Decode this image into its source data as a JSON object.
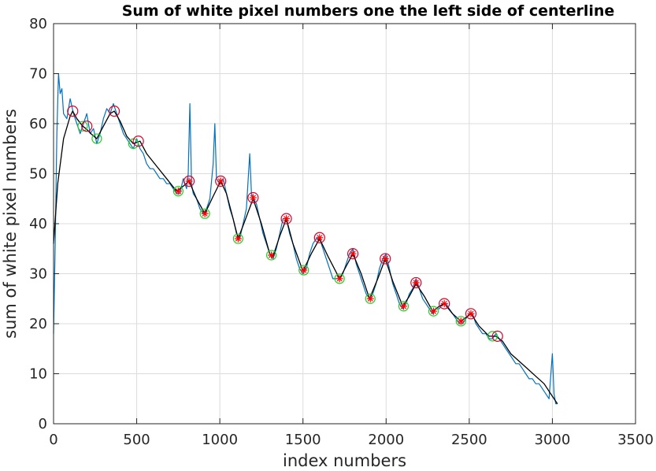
{
  "chart_data": {
    "type": "line",
    "title": "Sum of white pixel numbers one the left side of centerline",
    "xlabel": "index numbers",
    "ylabel": "sum of white pixel numbers",
    "xlim": [
      0,
      3500
    ],
    "ylim": [
      0,
      80
    ],
    "xticks": [
      0,
      500,
      1000,
      1500,
      2000,
      2500,
      3000,
      3500
    ],
    "yticks": [
      0,
      10,
      20,
      30,
      40,
      50,
      60,
      70,
      80
    ],
    "grid": true,
    "legend": "none",
    "colors": {
      "raw": "#0072bd",
      "smooth": "#000000",
      "peaks": "#d9002c",
      "valleys": "#22cc22",
      "stars": "#ff0000",
      "axes": "#262626",
      "grid": "#dcdcdc"
    },
    "series": [
      {
        "role": "smoothed",
        "points": [
          [
            0,
            36
          ],
          [
            25,
            48
          ],
          [
            60,
            57
          ],
          [
            100,
            61.5
          ],
          [
            115,
            62.5
          ],
          [
            140,
            61
          ],
          [
            175,
            59.5
          ],
          [
            195,
            59
          ],
          [
            225,
            58
          ],
          [
            260,
            57
          ],
          [
            300,
            59.5
          ],
          [
            340,
            62
          ],
          [
            365,
            62.5
          ],
          [
            400,
            60.5
          ],
          [
            440,
            57.5
          ],
          [
            480,
            56
          ],
          [
            520,
            56.5
          ],
          [
            560,
            54
          ],
          [
            620,
            51.5
          ],
          [
            680,
            49
          ],
          [
            740,
            46.5
          ],
          [
            780,
            47.5
          ],
          [
            815,
            48.5
          ],
          [
            860,
            45
          ],
          [
            910,
            42
          ],
          [
            960,
            45.5
          ],
          [
            1005,
            48.5
          ],
          [
            1040,
            46
          ],
          [
            1080,
            41
          ],
          [
            1110,
            37
          ],
          [
            1150,
            40.5
          ],
          [
            1200,
            45
          ],
          [
            1250,
            40
          ],
          [
            1300,
            34
          ],
          [
            1320,
            33.5
          ],
          [
            1360,
            37.5
          ],
          [
            1400,
            41
          ],
          [
            1440,
            36
          ],
          [
            1500,
            30.5
          ],
          [
            1550,
            34
          ],
          [
            1600,
            37
          ],
          [
            1650,
            33.5
          ],
          [
            1720,
            29
          ],
          [
            1760,
            31.5
          ],
          [
            1800,
            34
          ],
          [
            1850,
            30
          ],
          [
            1900,
            25
          ],
          [
            1950,
            29
          ],
          [
            1995,
            33
          ],
          [
            2040,
            28.5
          ],
          [
            2100,
            23.5
          ],
          [
            2140,
            25.5
          ],
          [
            2180,
            28
          ],
          [
            2230,
            25.5
          ],
          [
            2280,
            22.5
          ],
          [
            2320,
            23.5
          ],
          [
            2350,
            24
          ],
          [
            2400,
            22
          ],
          [
            2450,
            20.5
          ],
          [
            2510,
            22
          ],
          [
            2560,
            19.5
          ],
          [
            2620,
            17.5
          ],
          [
            2660,
            17.5
          ],
          [
            2700,
            16.5
          ],
          [
            2750,
            14
          ],
          [
            2800,
            12.5
          ],
          [
            2850,
            11
          ],
          [
            2900,
            9.5
          ],
          [
            2950,
            8
          ],
          [
            3000,
            5.5
          ],
          [
            3030,
            4
          ]
        ]
      },
      {
        "role": "raw-signal",
        "points": [
          [
            0,
            18
          ],
          [
            10,
            36
          ],
          [
            20,
            58
          ],
          [
            30,
            70
          ],
          [
            40,
            66
          ],
          [
            50,
            67
          ],
          [
            60,
            62
          ],
          [
            80,
            61
          ],
          [
            100,
            65
          ],
          [
            120,
            62
          ],
          [
            140,
            60
          ],
          [
            160,
            58
          ],
          [
            180,
            60
          ],
          [
            200,
            62
          ],
          [
            220,
            58
          ],
          [
            240,
            59
          ],
          [
            260,
            56
          ],
          [
            280,
            58
          ],
          [
            300,
            61
          ],
          [
            320,
            63
          ],
          [
            340,
            62
          ],
          [
            360,
            64
          ],
          [
            380,
            62
          ],
          [
            400,
            60
          ],
          [
            420,
            58
          ],
          [
            440,
            57
          ],
          [
            460,
            56
          ],
          [
            480,
            55
          ],
          [
            500,
            57
          ],
          [
            520,
            55
          ],
          [
            540,
            54
          ],
          [
            560,
            52
          ],
          [
            580,
            51
          ],
          [
            600,
            51
          ],
          [
            620,
            50
          ],
          [
            640,
            49
          ],
          [
            660,
            49
          ],
          [
            680,
            48
          ],
          [
            700,
            48
          ],
          [
            720,
            47
          ],
          [
            740,
            46
          ],
          [
            760,
            46
          ],
          [
            780,
            49
          ],
          [
            800,
            47
          ],
          [
            810,
            50
          ],
          [
            820,
            64
          ],
          [
            830,
            48
          ],
          [
            840,
            46
          ],
          [
            860,
            45
          ],
          [
            880,
            43
          ],
          [
            900,
            42
          ],
          [
            920,
            43
          ],
          [
            940,
            45
          ],
          [
            960,
            52
          ],
          [
            970,
            60
          ],
          [
            980,
            49
          ],
          [
            1000,
            48
          ],
          [
            1020,
            49
          ],
          [
            1040,
            46
          ],
          [
            1060,
            43
          ],
          [
            1080,
            41
          ],
          [
            1100,
            38
          ],
          [
            1120,
            37
          ],
          [
            1140,
            40
          ],
          [
            1160,
            43
          ],
          [
            1180,
            54
          ],
          [
            1190,
            46
          ],
          [
            1200,
            45
          ],
          [
            1220,
            44
          ],
          [
            1240,
            41
          ],
          [
            1260,
            38
          ],
          [
            1280,
            36
          ],
          [
            1300,
            34
          ],
          [
            1320,
            33
          ],
          [
            1340,
            35
          ],
          [
            1360,
            38
          ],
          [
            1380,
            41
          ],
          [
            1400,
            41
          ],
          [
            1420,
            38
          ],
          [
            1440,
            36
          ],
          [
            1460,
            33
          ],
          [
            1480,
            31
          ],
          [
            1500,
            30
          ],
          [
            1520,
            31
          ],
          [
            1540,
            34
          ],
          [
            1560,
            36
          ],
          [
            1580,
            37
          ],
          [
            1600,
            37
          ],
          [
            1620,
            35
          ],
          [
            1640,
            33
          ],
          [
            1660,
            31
          ],
          [
            1680,
            29
          ],
          [
            1700,
            29
          ],
          [
            1720,
            29
          ],
          [
            1740,
            30
          ],
          [
            1760,
            32
          ],
          [
            1780,
            34
          ],
          [
            1800,
            35
          ],
          [
            1820,
            32
          ],
          [
            1840,
            30
          ],
          [
            1860,
            28
          ],
          [
            1880,
            26
          ],
          [
            1900,
            25
          ],
          [
            1920,
            26
          ],
          [
            1940,
            28
          ],
          [
            1960,
            31
          ],
          [
            1980,
            33
          ],
          [
            2000,
            34
          ],
          [
            2020,
            31
          ],
          [
            2040,
            28
          ],
          [
            2060,
            26
          ],
          [
            2080,
            24
          ],
          [
            2100,
            23
          ],
          [
            2120,
            24
          ],
          [
            2140,
            26
          ],
          [
            2160,
            27
          ],
          [
            2180,
            29
          ],
          [
            2200,
            27
          ],
          [
            2220,
            25
          ],
          [
            2240,
            24
          ],
          [
            2260,
            23
          ],
          [
            2280,
            22
          ],
          [
            2300,
            23
          ],
          [
            2320,
            23
          ],
          [
            2340,
            24
          ],
          [
            2360,
            24
          ],
          [
            2380,
            23
          ],
          [
            2400,
            22
          ],
          [
            2420,
            21
          ],
          [
            2440,
            20
          ],
          [
            2460,
            20
          ],
          [
            2480,
            21
          ],
          [
            2500,
            22
          ],
          [
            2520,
            22
          ],
          [
            2540,
            20
          ],
          [
            2560,
            19
          ],
          [
            2580,
            18
          ],
          [
            2600,
            18
          ],
          [
            2620,
            17
          ],
          [
            2640,
            17
          ],
          [
            2660,
            18
          ],
          [
            2680,
            17
          ],
          [
            2700,
            16
          ],
          [
            2720,
            15
          ],
          [
            2740,
            14
          ],
          [
            2760,
            13
          ],
          [
            2780,
            12
          ],
          [
            2800,
            12
          ],
          [
            2820,
            11
          ],
          [
            2840,
            10
          ],
          [
            2860,
            9
          ],
          [
            2880,
            9
          ],
          [
            2900,
            8
          ],
          [
            2920,
            8
          ],
          [
            2940,
            7
          ],
          [
            2960,
            6
          ],
          [
            2980,
            5
          ],
          [
            3000,
            14
          ],
          [
            3010,
            6
          ],
          [
            3020,
            4
          ],
          [
            3030,
            4
          ]
        ]
      }
    ],
    "peaks": [
      [
        115,
        62.5
      ],
      [
        200,
        59.5
      ],
      [
        365,
        62.5
      ],
      [
        510,
        56.5
      ],
      [
        815,
        48.5
      ],
      [
        1005,
        48.5
      ],
      [
        1200,
        45.2
      ],
      [
        1400,
        41
      ],
      [
        1600,
        37.2
      ],
      [
        1800,
        34
      ],
      [
        1995,
        33
      ],
      [
        2180,
        28.2
      ],
      [
        2350,
        24
      ],
      [
        2510,
        22
      ],
      [
        2670,
        17.5
      ]
    ],
    "valleys": [
      [
        175,
        59.5
      ],
      [
        260,
        57
      ],
      [
        480,
        56
      ],
      [
        750,
        46.5
      ],
      [
        910,
        42
      ],
      [
        1110,
        37
      ],
      [
        1310,
        33.7
      ],
      [
        1505,
        30.7
      ],
      [
        1720,
        29
      ],
      [
        1905,
        25
      ],
      [
        2105,
        23.5
      ],
      [
        2285,
        22.5
      ],
      [
        2450,
        20.5
      ],
      [
        2640,
        17.5
      ]
    ],
    "stars": [
      [
        750,
        46.5
      ],
      [
        815,
        48.5
      ],
      [
        910,
        42
      ],
      [
        1005,
        48.5
      ],
      [
        1110,
        37
      ],
      [
        1200,
        45.2
      ],
      [
        1310,
        33.7
      ],
      [
        1400,
        41
      ],
      [
        1505,
        30.7
      ],
      [
        1600,
        37.2
      ],
      [
        1720,
        29
      ],
      [
        1800,
        34
      ],
      [
        1905,
        25
      ],
      [
        1995,
        33
      ],
      [
        2105,
        23.5
      ],
      [
        2180,
        28.2
      ],
      [
        2285,
        22.5
      ],
      [
        2350,
        24
      ],
      [
        2450,
        20.5
      ],
      [
        2510,
        22
      ]
    ]
  }
}
